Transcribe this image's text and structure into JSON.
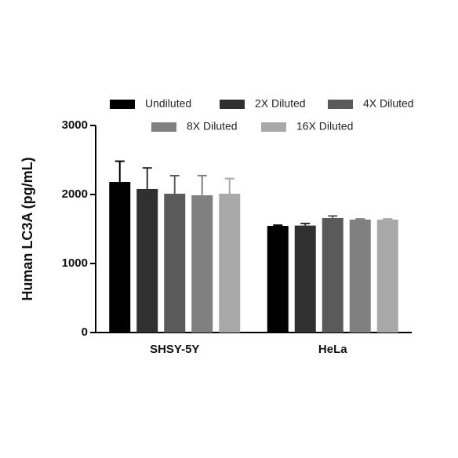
{
  "chart_data": {
    "type": "bar",
    "y_label": "Human LC3A (pg/mL)",
    "categories": [
      "SHSY-5Y",
      "HeLa"
    ],
    "ylim": [
      0,
      3000
    ],
    "yticks": [
      0,
      1000,
      2000,
      3000
    ],
    "series": [
      {
        "name": "Undiluted",
        "color": "#000000",
        "values": [
          2182,
          1545
        ],
        "errors": [
          300,
          10
        ]
      },
      {
        "name": "2X Diluted",
        "color": "#303030",
        "values": [
          2080,
          1550
        ],
        "errors": [
          305,
          30
        ]
      },
      {
        "name": "4X Diluted",
        "color": "#5a5a5a",
        "values": [
          2011,
          1659
        ],
        "errors": [
          262,
          30
        ]
      },
      {
        "name": "8X Diluted",
        "color": "#808080",
        "values": [
          1989,
          1636
        ],
        "errors": [
          285,
          10
        ]
      },
      {
        "name": "16X Diluted",
        "color": "#a8a8a8",
        "values": [
          2011,
          1636
        ],
        "errors": [
          220,
          10
        ]
      }
    ]
  }
}
